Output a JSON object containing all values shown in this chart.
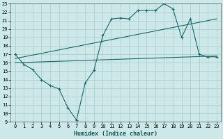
{
  "xlabel": "Humidex (Indice chaleur)",
  "background_color": "#cce8e8",
  "grid_color": "#aacccc",
  "line_color": "#1a6666",
  "xlim": [
    -0.5,
    23.5
  ],
  "ylim": [
    9,
    23
  ],
  "xticks": [
    0,
    1,
    2,
    3,
    4,
    5,
    6,
    7,
    8,
    9,
    10,
    11,
    12,
    13,
    14,
    15,
    16,
    17,
    18,
    19,
    20,
    21,
    22,
    23
  ],
  "yticks": [
    9,
    10,
    11,
    12,
    13,
    14,
    15,
    16,
    17,
    18,
    19,
    20,
    21,
    22,
    23
  ],
  "line1_x": [
    0,
    1,
    2,
    3,
    4,
    5,
    6,
    7,
    8,
    9,
    10,
    11,
    12,
    13,
    14,
    15,
    16,
    17,
    18,
    19,
    20,
    21,
    22,
    23
  ],
  "line1_y": [
    17.0,
    15.8,
    15.2,
    14.0,
    13.3,
    12.9,
    10.7,
    9.2,
    13.6,
    15.1,
    19.2,
    21.2,
    21.3,
    21.2,
    22.2,
    22.2,
    22.2,
    23.0,
    22.4,
    19.0,
    21.2,
    17.0,
    16.7,
    16.7
  ],
  "line2_x": [
    0,
    23
  ],
  "line2_y": [
    16.5,
    21.2
  ],
  "line3_x": [
    0,
    23
  ],
  "line3_y": [
    16.0,
    16.8
  ],
  "marker": "+",
  "markersize": 3,
  "linewidth": 0.8,
  "tick_fontsize": 5,
  "xlabel_fontsize": 6
}
